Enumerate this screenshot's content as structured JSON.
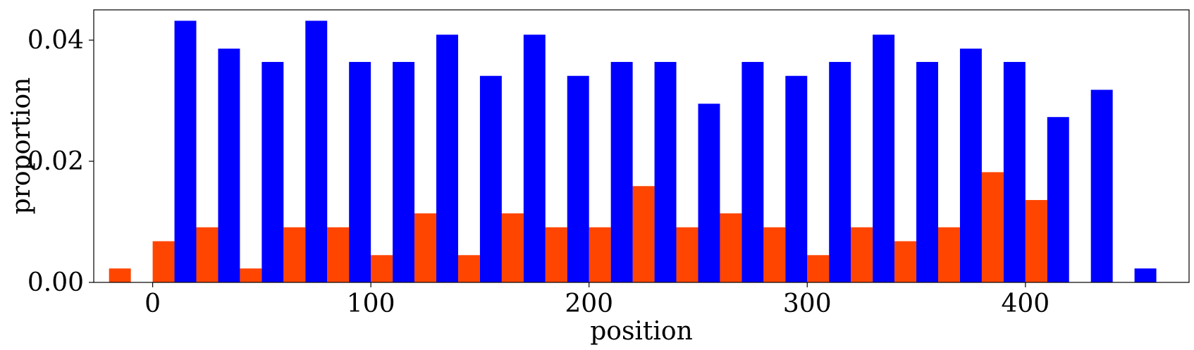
{
  "chart_data": {
    "type": "bar",
    "xlabel": "position",
    "ylabel": "proportion",
    "xlim": [
      -27,
      475
    ],
    "ylim": [
      0,
      0.045
    ],
    "x_ticks": [
      0,
      100,
      200,
      300,
      400
    ],
    "x_tick_labels": [
      "0",
      "100",
      "200",
      "300",
      "400"
    ],
    "y_ticks": [
      0,
      0.02,
      0.04
    ],
    "y_tick_labels": [
      "0.00",
      "0.02",
      "0.04"
    ],
    "bin_width": 20,
    "legend": "none",
    "grid": false,
    "series": [
      {
        "color": "#ff4500",
        "x": [
          -15,
          5,
          25,
          45,
          65,
          85,
          105,
          125,
          145,
          165,
          185,
          205,
          225,
          245,
          265,
          285,
          305,
          325,
          345,
          365,
          385,
          405,
          425
        ],
        "values": [
          0.0023,
          0.0068,
          0.0091,
          0.0023,
          0.0091,
          0.0091,
          0.0045,
          0.0114,
          0.0045,
          0.0114,
          0.0091,
          0.0091,
          0.0159,
          0.0091,
          0.0114,
          0.0091,
          0.0045,
          0.0091,
          0.0068,
          0.0091,
          0.0182,
          0.0136,
          0.0
        ]
      },
      {
        "color": "#0000ff",
        "x": [
          -5,
          15,
          35,
          55,
          75,
          95,
          115,
          135,
          155,
          175,
          195,
          215,
          235,
          255,
          275,
          295,
          315,
          335,
          355,
          375,
          395,
          415,
          435,
          455
        ],
        "values": [
          0.0,
          0.0432,
          0.0386,
          0.0364,
          0.0432,
          0.0364,
          0.0364,
          0.0409,
          0.0341,
          0.0409,
          0.0341,
          0.0364,
          0.0364,
          0.0295,
          0.0364,
          0.0341,
          0.0364,
          0.0409,
          0.0364,
          0.0386,
          0.0364,
          0.0273,
          0.0318,
          0.0023
        ]
      }
    ]
  }
}
